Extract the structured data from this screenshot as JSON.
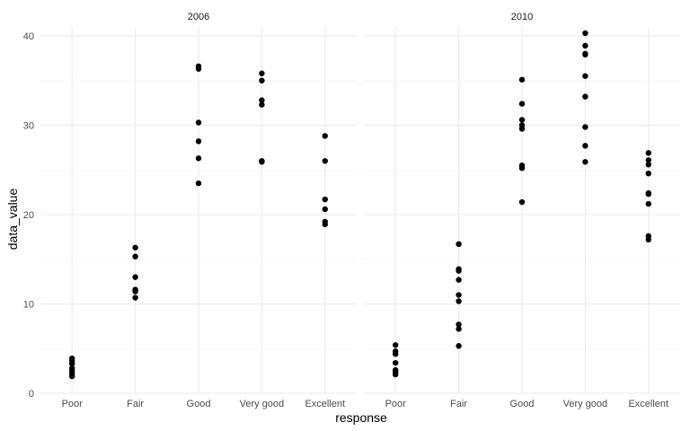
{
  "chart_data": {
    "type": "scatter",
    "facet_var": "year",
    "facets": [
      "2006",
      "2010"
    ],
    "categories": [
      "Poor",
      "Fair",
      "Good",
      "Very good",
      "Excellent"
    ],
    "xlabel": "response",
    "ylabel": "data_value",
    "ylim": [
      0,
      41
    ],
    "yticks": [
      0,
      10,
      20,
      30,
      40
    ],
    "grid": true,
    "point_color": "#000000",
    "panels": [
      {
        "facet": "2006",
        "points": {
          "Poor": [
            1.9,
            2.2,
            2.5,
            2.8,
            3.3,
            3.6,
            3.9
          ],
          "Fair": [
            10.7,
            11.4,
            11.6,
            13.0,
            15.3,
            16.3
          ],
          "Good": [
            23.5,
            26.3,
            28.2,
            30.3,
            36.3,
            36.6
          ],
          "Very good": [
            25.9,
            26.0,
            32.3,
            32.8,
            35.0,
            35.8
          ],
          "Excellent": [
            18.9,
            19.2,
            20.6,
            21.7,
            26.0,
            28.8
          ]
        }
      },
      {
        "facet": "2010",
        "points": {
          "Poor": [
            2.1,
            2.4,
            2.6,
            3.4,
            4.4,
            4.7,
            5.4
          ],
          "Fair": [
            5.3,
            7.2,
            7.7,
            10.3,
            11.0,
            12.7,
            13.7,
            13.9,
            16.7
          ],
          "Good": [
            21.4,
            25.2,
            25.5,
            29.6,
            30.0,
            30.6,
            32.4,
            35.1
          ],
          "Very good": [
            25.9,
            27.7,
            29.8,
            33.2,
            35.5,
            37.9,
            38.0,
            38.9,
            40.3
          ],
          "Excellent": [
            17.2,
            17.6,
            21.2,
            22.3,
            22.4,
            24.6,
            25.6,
            26.1,
            26.9
          ]
        }
      }
    ]
  }
}
